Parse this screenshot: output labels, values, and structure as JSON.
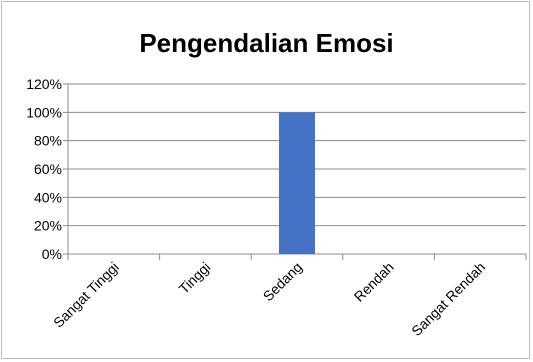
{
  "chart_data": {
    "type": "bar",
    "title": "Pengendalian Emosi",
    "xlabel": "",
    "ylabel": "",
    "categories": [
      "Sangat Tinggi",
      "Tinggi",
      "Sedang",
      "Rendah",
      "Sangat Rendah"
    ],
    "values": [
      0,
      0,
      100,
      0,
      0
    ],
    "ylim": [
      0,
      120
    ],
    "yticks": [
      "0%",
      "20%",
      "40%",
      "60%",
      "80%",
      "100%",
      "120%"
    ],
    "grid": true,
    "legend": "none",
    "colors": {
      "bar": "#4472C4",
      "grid": "#8c8c8c",
      "axis": "#8c8c8c"
    }
  }
}
